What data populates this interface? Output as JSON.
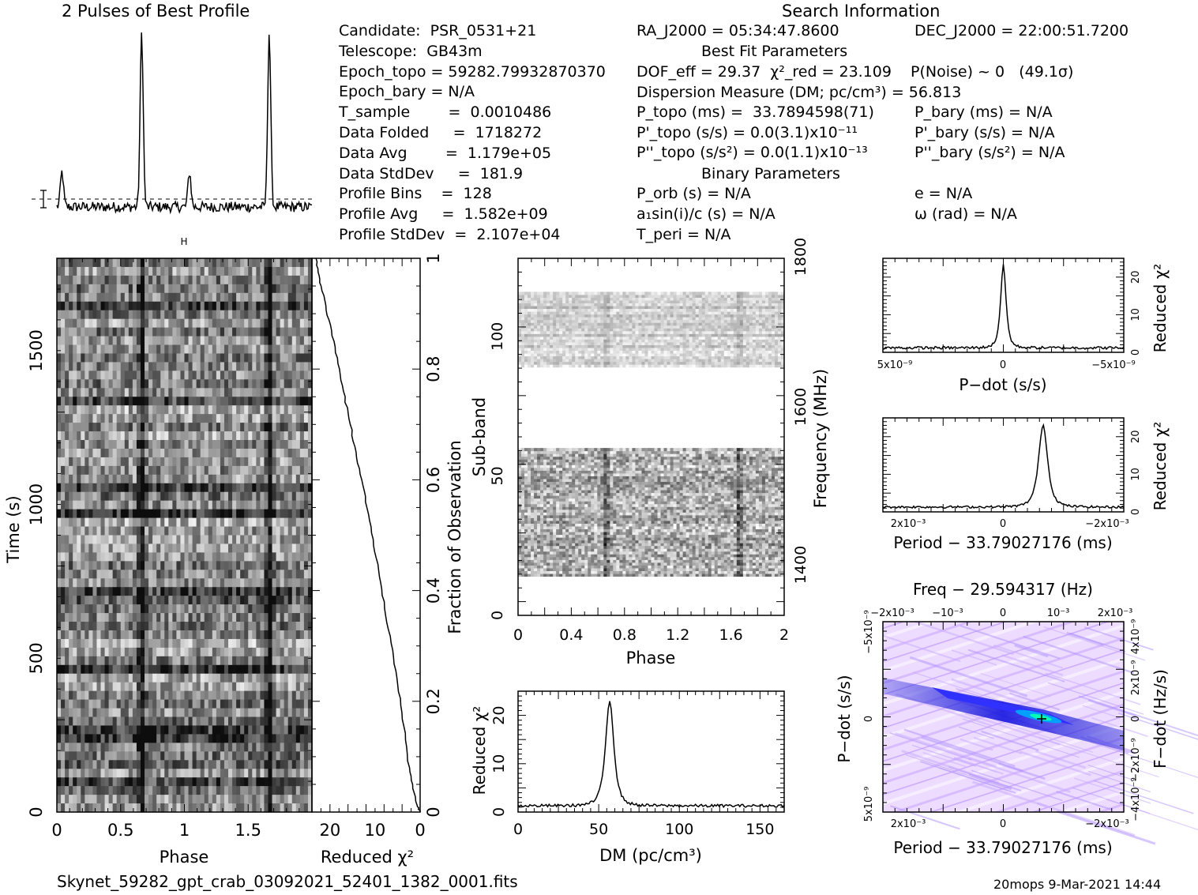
{
  "header": {
    "profile_title": "2 Pulses of Best Profile",
    "search_title": "Search Information",
    "best_fit_title": "Best Fit Parameters",
    "binary_title": "Binary Parameters"
  },
  "info": {
    "col1": [
      "Candidate:  PSR_0531+21",
      "Telescope:  GB43m",
      "Epoch_topo = 59282.79932870370",
      "Epoch_bary = N/A",
      "T_sample        =  0.0010486",
      "Data Folded     =  1718272",
      "Data Avg        =  1.179e+05",
      "Data StdDev     =  181.9",
      "Profile Bins    =  128",
      "Profile Avg     =  1.582e+09",
      "Profile StdDev  =  2.107e+04"
    ],
    "col2": [
      "RA_J2000 = 05:34:47.8600",
      "DOF_eff = 29.37  χ²_red = 23.109",
      "Dispersion Measure (DM; pc/cm³) = 56.813",
      "P_topo (ms) =  33.7894598(71)",
      "P'_topo (s/s) = 0.0(3.1)x10⁻¹¹",
      "P''_topo (s/s²) = 0.0(1.1)x10⁻¹³",
      "P_orb (s) = N/A",
      "a₁sin(i)/c (s) = N/A",
      "T_peri = N/A"
    ],
    "col3": [
      "DEC_J2000 = 22:00:51.7200",
      "P(Noise) ~ 0   (49.1σ)",
      "P_bary (ms) = N/A",
      "P'_bary (s/s) = N/A",
      "P''_bary (s/s²) = N/A",
      "e = N/A",
      "ω (rad) = N/A"
    ]
  },
  "footer": {
    "filename": "Skynet_59282_gpt_crab_03092021_52401_1382_0001.fits",
    "stamp": "20mops  9-Mar-2021 14:44"
  },
  "chart_data": [
    {
      "type": "line",
      "name": "profile",
      "title": "2 Pulses of Best Profile",
      "x_range": [
        0,
        2
      ],
      "peaks_phase": [
        0.04,
        0.665,
        1.04,
        1.665
      ],
      "peaks_rel_height": [
        0.2,
        1.0,
        0.2,
        1.0
      ],
      "error_bar": true
    },
    {
      "type": "heatmap",
      "name": "time-phase",
      "xlabel": "Phase",
      "ylabel": "Time (s)",
      "xticks": [
        "0",
        "0.5",
        "1",
        "1.5"
      ],
      "yticks": [
        "0",
        "500",
        "1000",
        "1500"
      ],
      "x_range": [
        0,
        2
      ],
      "y_range": [
        0,
        1800
      ],
      "pulse_phases": [
        0.665,
        1.665
      ]
    },
    {
      "type": "line",
      "name": "reduced-chi2-vs-time",
      "xlabel": "Reduced χ²",
      "ylabel": "Fraction of Observation",
      "xticks": [
        "20",
        "10",
        "0"
      ],
      "yticks": [
        "0",
        "0.2",
        "0.4",
        "0.6",
        "0.8",
        "1"
      ],
      "x_range": [
        24,
        0
      ],
      "x": [
        0,
        1,
        2.5,
        4,
        6,
        8,
        10,
        12,
        14,
        16,
        18,
        20,
        22,
        23.1
      ],
      "y": [
        0,
        0.02,
        0.08,
        0.18,
        0.28,
        0.38,
        0.47,
        0.56,
        0.64,
        0.72,
        0.8,
        0.88,
        0.95,
        1.0
      ]
    },
    {
      "type": "heatmap",
      "name": "subband-phase",
      "xlabel": "Phase",
      "ylabel": "Sub-band",
      "y2label": "Frequency (MHz)",
      "xticks": [
        "0",
        "0.4",
        "0.8",
        "1.2",
        "1.6",
        "2"
      ],
      "yticks": [
        "0",
        "50",
        "100"
      ],
      "y2ticks": [
        "1400",
        "1600",
        "1800"
      ],
      "x_range": [
        0,
        2
      ],
      "y_range": [
        0,
        128
      ],
      "filled_bands": [
        [
          14,
          60
        ],
        [
          89,
          116
        ]
      ]
    },
    {
      "type": "line",
      "name": "dm-curve",
      "xlabel": "DM (pc/cm³)",
      "ylabel": "Reduced χ²",
      "xticks": [
        "0",
        "50",
        "100",
        "150"
      ],
      "yticks": [
        "0",
        "10",
        "20"
      ],
      "x_range": [
        0,
        165
      ],
      "y_range": [
        0,
        25
      ],
      "peak_x": 56.8,
      "peak_y": 23.1
    },
    {
      "type": "line",
      "name": "pdot-curve",
      "xlabel": "P−dot (s/s)",
      "ylabel": "Reduced χ²",
      "xticks": [
        "5x10⁻⁹",
        "0",
        "−5x10⁻⁹"
      ],
      "yticks": [
        "0",
        "10",
        "20"
      ],
      "y_range": [
        0,
        25
      ],
      "peak_y": 23.1
    },
    {
      "type": "line",
      "name": "period-curve",
      "xlabel": "Period − 33.79027176 (ms)",
      "ylabel": "Reduced χ²",
      "xticks": [
        "2x10⁻³",
        "0",
        "−2x10⁻³"
      ],
      "yticks": [
        "0",
        "10",
        "20"
      ],
      "y_range": [
        0,
        25
      ],
      "peak_y": 23.1
    },
    {
      "type": "heatmap",
      "name": "p-pdot-plane",
      "title": "Freq − 29.594317 (Hz)",
      "xlabel": "Period − 33.79027176 (ms)",
      "ylabel": "P−dot (s/s)",
      "y2label": "F−dot (Hz/s)",
      "xticks_top": [
        "−2x10⁻³",
        "−10⁻³",
        "0",
        "10⁻³",
        "2x10⁻³"
      ],
      "xticks_bottom": [
        "2x10⁻³",
        "0",
        "−2x10⁻³"
      ],
      "yticks_left": [
        "5x10⁻⁹",
        "0",
        "−5x10⁻⁹"
      ],
      "yticks_right": [
        "−4x10⁻⁹",
        "−2x10⁻⁹",
        "0",
        "2x10⁻⁹",
        "4x10⁻⁹"
      ],
      "colors": [
        "#ffffff",
        "#c8a8ff",
        "#3030ff",
        "#00a0ff",
        "#00ffb0"
      ]
    }
  ]
}
